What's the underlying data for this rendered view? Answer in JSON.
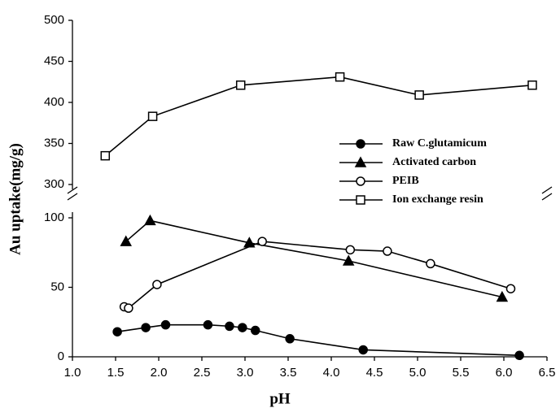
{
  "chart_data": [
    {
      "type": "line",
      "xlim": [
        1.0,
        6.5
      ],
      "ylim": [
        300,
        500
      ],
      "yticks": [
        300,
        350,
        400,
        450,
        500
      ],
      "series": [
        {
          "name": "Ion exchange resin",
          "color": "#000000",
          "marker": "square-open",
          "x": [
            1.38,
            1.93,
            2.95,
            4.1,
            5.02,
            6.33
          ],
          "values": [
            335,
            383,
            421,
            431,
            409,
            421
          ]
        }
      ]
    },
    {
      "type": "line",
      "x_label": "pH",
      "y_label": "Au uptake(mg/g)",
      "xlim": [
        1.0,
        6.5
      ],
      "ylim": [
        0,
        100
      ],
      "xticks": [
        {
          "value": 1,
          "label": "1.0"
        },
        1.5,
        {
          "value": 2,
          "label": "2.0"
        },
        2.5,
        {
          "value": 3,
          "label": "3.0"
        },
        3.5,
        {
          "value": 4,
          "label": "4.0"
        },
        4.5,
        {
          "value": 5,
          "label": "5.0"
        },
        5.5,
        {
          "value": 6,
          "label": "6.0"
        },
        6.5
      ],
      "yticks": [
        0,
        50,
        100
      ],
      "series": [
        {
          "name": "Raw C.glutamicum",
          "color": "#000000",
          "marker": "circle-filled",
          "x": [
            1.52,
            1.85,
            2.08,
            2.57,
            2.82,
            2.97,
            3.12,
            3.52,
            4.37,
            6.18
          ],
          "values": [
            18,
            21,
            23,
            23,
            22,
            21,
            19,
            13,
            5,
            1
          ]
        },
        {
          "name": "Activated carbon",
          "color": "#000000",
          "marker": "triangle-filled",
          "x": [
            1.62,
            1.9,
            3.05,
            4.2,
            5.98
          ],
          "values": [
            83,
            98,
            82,
            69,
            43
          ]
        },
        {
          "name": "PEIB",
          "color": "#000000",
          "marker": "circle-open",
          "x": [
            1.6,
            1.65,
            1.98,
            3.2,
            4.22,
            4.65,
            5.15,
            6.08
          ],
          "values": [
            36,
            35,
            52,
            83,
            77,
            76,
            67,
            49
          ]
        }
      ]
    }
  ]
}
